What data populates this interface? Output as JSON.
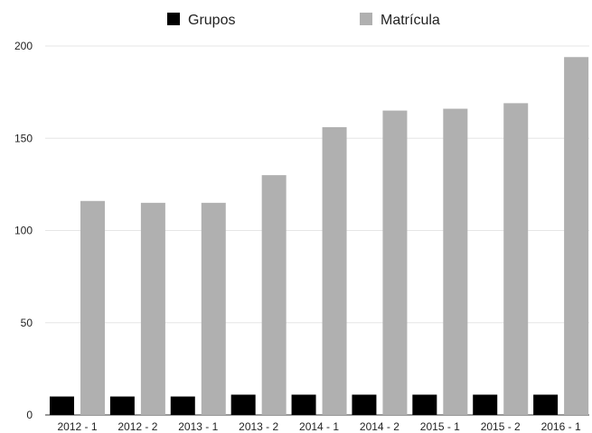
{
  "chart_data": {
    "type": "bar",
    "title": "",
    "xlabel": "",
    "ylabel": "",
    "categories": [
      "2012 - 1",
      "2012 - 2",
      "2013 - 1",
      "2013 - 2",
      "2014 - 1",
      "2014 - 2",
      "2015 - 1",
      "2015 - 2",
      "2016 - 1"
    ],
    "series": [
      {
        "name": "Grupos",
        "color": "#000000",
        "values": [
          10,
          10,
          10,
          11,
          11,
          11,
          11,
          11,
          11
        ]
      },
      {
        "name": "Matrícula",
        "color": "#b0b0b0",
        "values": [
          116,
          115,
          115,
          130,
          156,
          165,
          166,
          169,
          194
        ]
      }
    ],
    "ylim": [
      0,
      200
    ],
    "yticks": [
      0,
      50,
      100,
      150,
      200
    ],
    "grid": true,
    "legend_position": "top"
  }
}
